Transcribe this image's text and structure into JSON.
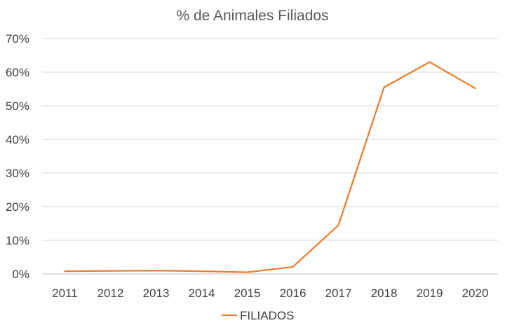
{
  "chart_data": {
    "type": "line",
    "title": "% de Animales Filiados",
    "categories": [
      "2011",
      "2012",
      "2013",
      "2014",
      "2015",
      "2016",
      "2017",
      "2018",
      "2019",
      "2020"
    ],
    "series": [
      {
        "name": "FILIADOS",
        "color": "#ed7d31",
        "values": [
          0.8,
          0.9,
          1.0,
          0.8,
          0.5,
          2.1,
          14.5,
          55.5,
          63.0,
          55.2
        ]
      }
    ],
    "ylim": [
      0,
      70
    ],
    "yticks": [
      0,
      10,
      20,
      30,
      40,
      50,
      60,
      70
    ],
    "ytick_labels": [
      "0%",
      "10%",
      "20%",
      "30%",
      "40%",
      "50%",
      "60%",
      "70%"
    ],
    "xlabel": "",
    "ylabel": "",
    "grid": true,
    "legend_position": "bottom"
  }
}
